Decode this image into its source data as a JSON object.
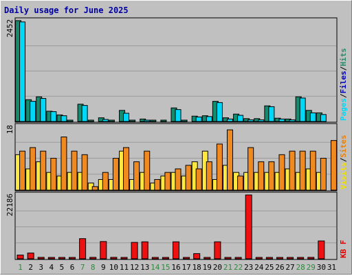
{
  "chart_data": {
    "type": "bar",
    "title": "Daily usage for June 2025",
    "categories": [
      "1",
      "2",
      "3",
      "4",
      "5",
      "6",
      "7",
      "8",
      "9",
      "10",
      "11",
      "12",
      "13",
      "14",
      "15",
      "16",
      "17",
      "18",
      "19",
      "20",
      "21",
      "22",
      "23",
      "24",
      "25",
      "26",
      "27",
      "28",
      "29",
      "30",
      "31"
    ],
    "weekend_days": [
      "1",
      "7",
      "8",
      "14",
      "15",
      "21",
      "22",
      "28",
      "29"
    ],
    "panels": [
      {
        "ymax_label": "2452",
        "ylim": [
          0,
          2452
        ],
        "legend": [
          {
            "text": "Pages",
            "color": "#00d8f8"
          },
          {
            "text": "/",
            "color": "#000000"
          },
          {
            "text": "Files",
            "color": "#0000c0"
          },
          {
            "text": "/",
            "color": "#000000"
          },
          {
            "text": "Hits",
            "color": "#2a8a6a"
          }
        ],
        "series": [
          {
            "name": "Hits",
            "color": "#168a6e",
            "values": [
              2452,
              530,
              600,
              250,
              160,
              20,
              420,
              20,
              90,
              20,
              270,
              20,
              60,
              20,
              20,
              330,
              20,
              130,
              140,
              490,
              90,
              180,
              70,
              70,
              380,
              80,
              60,
              600,
              270,
              210,
              0
            ]
          },
          {
            "name": "Pages",
            "color": "#00d8f8",
            "values": [
              2420,
              490,
              560,
              240,
              140,
              0,
              390,
              0,
              50,
              0,
              200,
              0,
              30,
              0,
              0,
              290,
              0,
              110,
              120,
              460,
              60,
              150,
              40,
              40,
              360,
              60,
              40,
              570,
              210,
              170,
              0
            ]
          }
        ]
      },
      {
        "ymax_label": "18",
        "ylim": [
          0,
          18
        ],
        "legend": [
          {
            "text": "Visits",
            "color": "#f0e000"
          },
          {
            "text": "/",
            "color": "#000000"
          },
          {
            "text": "Sites",
            "color": "#f08000"
          }
        ],
        "series": [
          {
            "name": "Visits",
            "color": "#ffe840",
            "values": [
              10,
              6,
              8,
              5,
              4,
              5,
              5,
              2,
              3,
              3,
              11,
              3,
              5,
              2,
              4,
              5,
              4,
              8,
              11,
              3,
              7,
              5,
              5,
              5,
              5,
              5,
              6,
              5,
              6,
              5,
              0
            ]
          },
          {
            "name": "Sites",
            "color": "#f08a20",
            "values": [
              11,
              12,
              11,
              9,
              15,
              11,
              10,
              1,
              5,
              9,
              12,
              8,
              11,
              3,
              5,
              6,
              7,
              6,
              8,
              13,
              17,
              4,
              12,
              8,
              8,
              10,
              11,
              11,
              11,
              9,
              14
            ]
          }
        ]
      },
      {
        "ymax_label": "22186",
        "ylim": [
          0,
          22186
        ],
        "legend": [
          {
            "text": "KB F",
            "color": "#e00000"
          }
        ],
        "series": [
          {
            "name": "KB F",
            "color": "#ee1111",
            "values": [
              1300,
              2000,
              500,
              400,
              400,
              400,
              7000,
              500,
              6000,
              500,
              400,
              5700,
              5900,
              400,
              400,
              5900,
              400,
              1800,
              400,
              5900,
              400,
              400,
              22186,
              400,
              400,
              400,
              400,
              400,
              500,
              6200,
              0
            ]
          }
        ]
      }
    ],
    "grid": true,
    "legend_placement": "right"
  }
}
